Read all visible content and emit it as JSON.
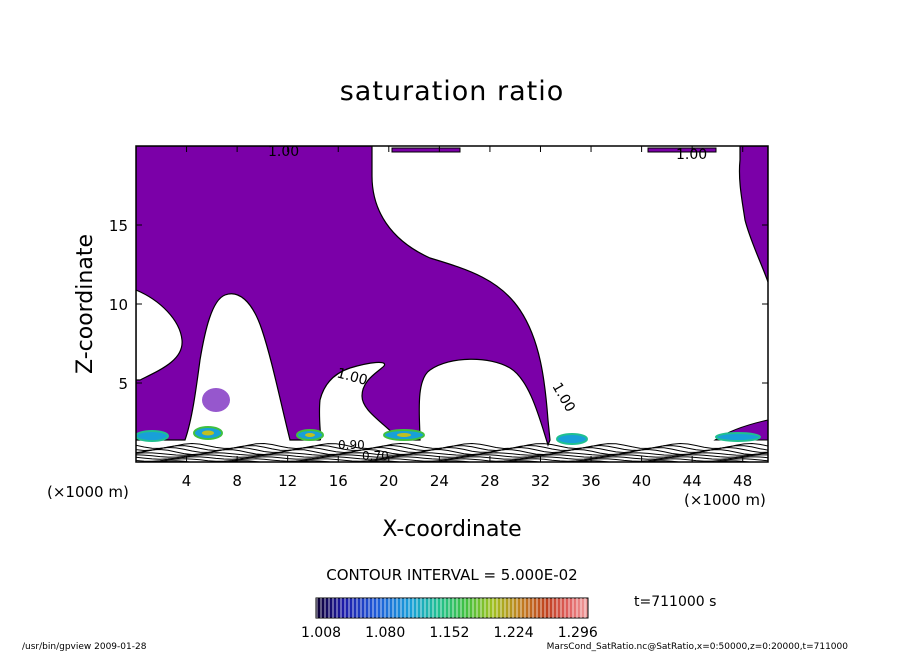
{
  "chart_data": {
    "type": "heatmap",
    "title": "saturation ratio",
    "xlabel": "X-coordinate",
    "ylabel": "Z-coordinate",
    "x_unit": "(×1000 m)",
    "z_unit": "(×1000 m)",
    "xlim": [
      0,
      50
    ],
    "ylim": [
      0,
      20
    ],
    "x_ticks": [
      "4",
      "8",
      "12",
      "16",
      "20",
      "24",
      "28",
      "32",
      "36",
      "40",
      "44",
      "48"
    ],
    "y_ticks": [
      "5",
      "10",
      "15"
    ],
    "contour_labels": [
      "1.00",
      "1.00",
      "1.00",
      "1.00",
      "0.90",
      "0.70"
    ],
    "contour_interval": "CONTOUR INTERVAL = 5.000E-02",
    "colorbar": {
      "ticks": [
        "1.008",
        "1.080",
        "1.152",
        "1.224",
        "1.296"
      ],
      "colors": [
        "#0d0030",
        "#1d1aa8",
        "#1e5ad8",
        "#18a0d8",
        "#20c090",
        "#40c040",
        "#a0c020",
        "#c08020",
        "#c04020",
        "#e06060",
        "#f0a0a0"
      ]
    },
    "fill_color": "#7b00a8",
    "time": "t=711000 s"
  },
  "footer": {
    "left": "/usr/bin/gpview  2009-01-28",
    "right": "MarsCond_SatRatio.nc@SatRatio,x=0:50000,z=0:20000,t=711000"
  }
}
